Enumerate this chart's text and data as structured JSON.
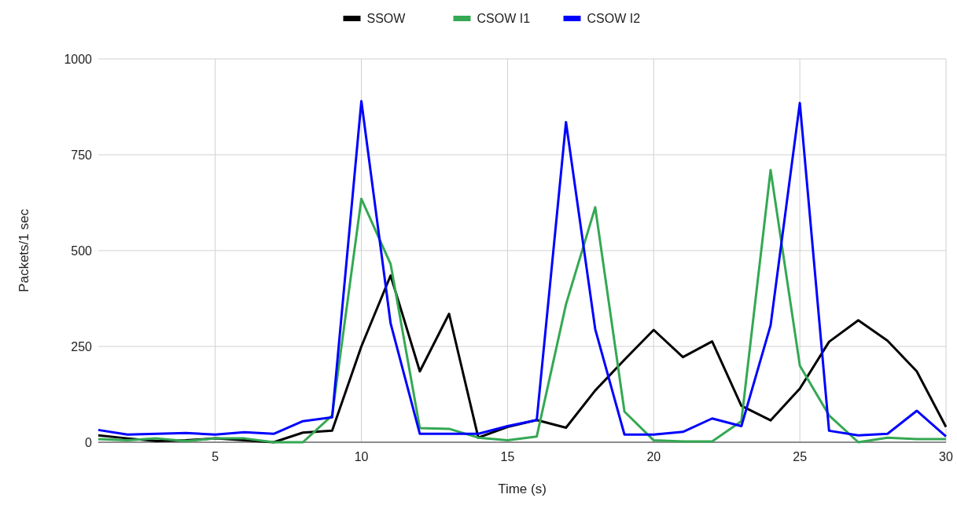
{
  "chart_data": {
    "type": "line",
    "xlabel": "Time (s)",
    "ylabel": "Packets/1 sec",
    "x": [
      1,
      2,
      3,
      4,
      5,
      6,
      7,
      8,
      9,
      10,
      11,
      12,
      13,
      14,
      15,
      16,
      17,
      18,
      19,
      20,
      21,
      22,
      23,
      24,
      25,
      26,
      27,
      28,
      29,
      30
    ],
    "series": [
      {
        "name": "SSOW",
        "color": "#000000",
        "values": [
          18,
          10,
          3,
          5,
          10,
          5,
          0,
          25,
          30,
          250,
          435,
          185,
          335,
          12,
          40,
          58,
          38,
          135,
          215,
          293,
          222,
          263,
          95,
          57,
          140,
          262,
          318,
          265,
          185,
          40
        ]
      },
      {
        "name": "CSOW I1",
        "color": "#34a853",
        "values": [
          8,
          5,
          10,
          3,
          10,
          10,
          0,
          0,
          70,
          635,
          465,
          37,
          35,
          12,
          5,
          15,
          360,
          613,
          80,
          5,
          2,
          2,
          55,
          710,
          200,
          70,
          0,
          12,
          8,
          8
        ]
      },
      {
        "name": "CSOW I2",
        "color": "#0000ff",
        "values": [
          32,
          20,
          22,
          24,
          20,
          26,
          22,
          55,
          65,
          890,
          310,
          22,
          22,
          22,
          42,
          58,
          835,
          295,
          20,
          20,
          27,
          62,
          42,
          305,
          885,
          30,
          18,
          22,
          82,
          15
        ]
      }
    ],
    "xlim": [
      1,
      30
    ],
    "xticks": [
      5,
      10,
      15,
      20,
      25,
      30
    ],
    "ylim": [
      0,
      1000
    ],
    "yticks": [
      0,
      250,
      500,
      750,
      1000
    ],
    "grid": true,
    "legend": "top",
    "marker": "none",
    "line_style": "solid"
  }
}
